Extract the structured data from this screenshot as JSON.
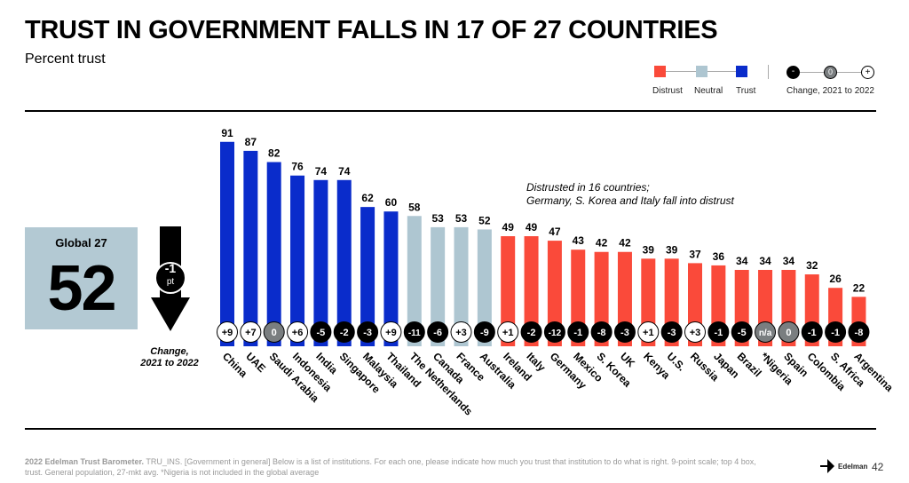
{
  "header": {
    "title": "TRUST IN GOVERNMENT FALLS IN 17 OF 27 COUNTRIES",
    "subtitle": "Percent trust"
  },
  "legend": {
    "distrust": "Distrust",
    "neutral": "Neutral",
    "trust": "Trust",
    "change_label": "Change, 2021 to 2022",
    "minus": "-",
    "zero": "0",
    "plus": "+"
  },
  "colors": {
    "trust": "#0a2ccb",
    "neutral": "#aec6d1",
    "distrust": "#fa4a3a",
    "negative": "#000000",
    "zero": "#7a7e80",
    "positive": "#ffffff"
  },
  "global": {
    "label": "Global 27",
    "value": "52",
    "change": "-1",
    "change_unit": "pt",
    "change_caption_1": "Change,",
    "change_caption_2": "2021 to 2022"
  },
  "annotation": {
    "line1": "Distrusted in 16 countries;",
    "line2": "Germany, S. Korea and Italy fall into distrust"
  },
  "footer": {
    "bold": "2022 Edelman Trust Barometer.",
    "text": " TRU_INS. [Government in general] Below is a list of institutions. For each one, please indicate how much you trust that institution to do what is right. 9-point scale; top 4 box, trust. General population, 27-mkt avg. *Nigeria is not included in the global average",
    "page": "42",
    "logo": "Edelman"
  },
  "chart_data": {
    "type": "bar",
    "title": "TRUST IN GOVERNMENT FALLS IN 17 OF 27 COUNTRIES",
    "ylabel": "Percent trust",
    "ylim": [
      0,
      100
    ],
    "categories": [
      "China",
      "UAE",
      "Saudi Arabia",
      "Indonesia",
      "India",
      "Singapore",
      "Malaysia",
      "Thailand",
      "The Netherlands",
      "Canada",
      "France",
      "Australia",
      "Ireland",
      "Italy",
      "Germany",
      "Mexico",
      "S. Korea",
      "UK",
      "Kenya",
      "U.S.",
      "Russia",
      "Japan",
      "Brazil",
      "*Nigeria",
      "Spain",
      "Colombia",
      "S. Africa",
      "Argentina"
    ],
    "values": [
      91,
      87,
      82,
      76,
      74,
      74,
      62,
      60,
      58,
      53,
      53,
      52,
      49,
      49,
      47,
      43,
      42,
      42,
      39,
      39,
      37,
      36,
      34,
      34,
      34,
      32,
      26,
      22
    ],
    "changes": [
      "+9",
      "+7",
      "0",
      "+6",
      "-5",
      "-2",
      "-3",
      "+9",
      "-11",
      "-6",
      "+3",
      "-9",
      "+1",
      "-2",
      "-12",
      "-1",
      "-8",
      "-3",
      "+1",
      "-3",
      "+3",
      "-1",
      "-5",
      "n/a",
      "0",
      "-1",
      "-1",
      "-8"
    ]
  }
}
